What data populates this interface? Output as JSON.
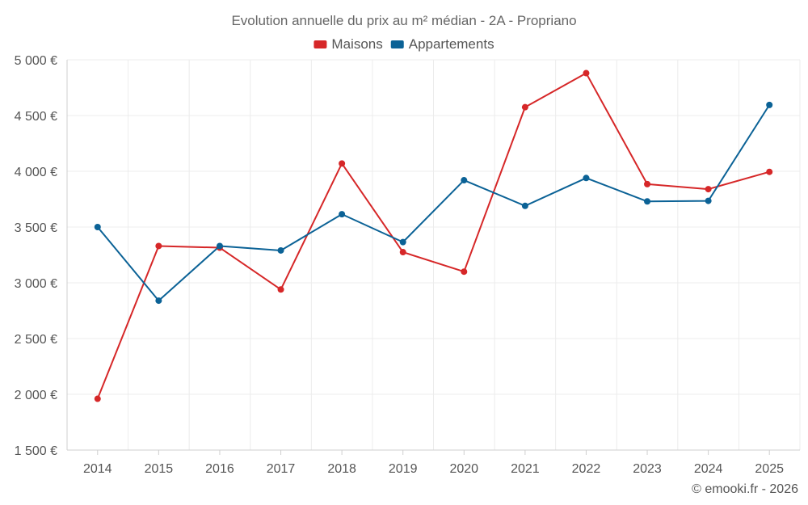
{
  "chart_data": {
    "type": "line",
    "title": "Evolution annuelle du prix au m² médian - 2A - Propriano",
    "x": [
      "2014",
      "2015",
      "2016",
      "2017",
      "2018",
      "2019",
      "2020",
      "2021",
      "2022",
      "2023",
      "2024",
      "2025"
    ],
    "ylim": [
      1500,
      5000
    ],
    "yticks": [
      1500,
      2000,
      2500,
      3000,
      3500,
      4000,
      4500,
      5000
    ],
    "ytick_labels": [
      "1 500 €",
      "2 000 €",
      "2 500 €",
      "3 000 €",
      "3 500 €",
      "4 000 €",
      "4 500 €",
      "5 000 €"
    ],
    "grid": true,
    "legend_position": "top-center",
    "series": [
      {
        "name": "Maisons",
        "color": "#d62728",
        "values": [
          1960,
          3330,
          3315,
          2940,
          4070,
          3275,
          3100,
          4575,
          4880,
          3885,
          3840,
          3995
        ]
      },
      {
        "name": "Appartements",
        "color": "#0b6296",
        "values": [
          3500,
          2840,
          3330,
          3290,
          3615,
          3365,
          3920,
          3690,
          3940,
          3730,
          3735,
          4595
        ]
      }
    ]
  },
  "credit": "© emooki.fr - 2026"
}
